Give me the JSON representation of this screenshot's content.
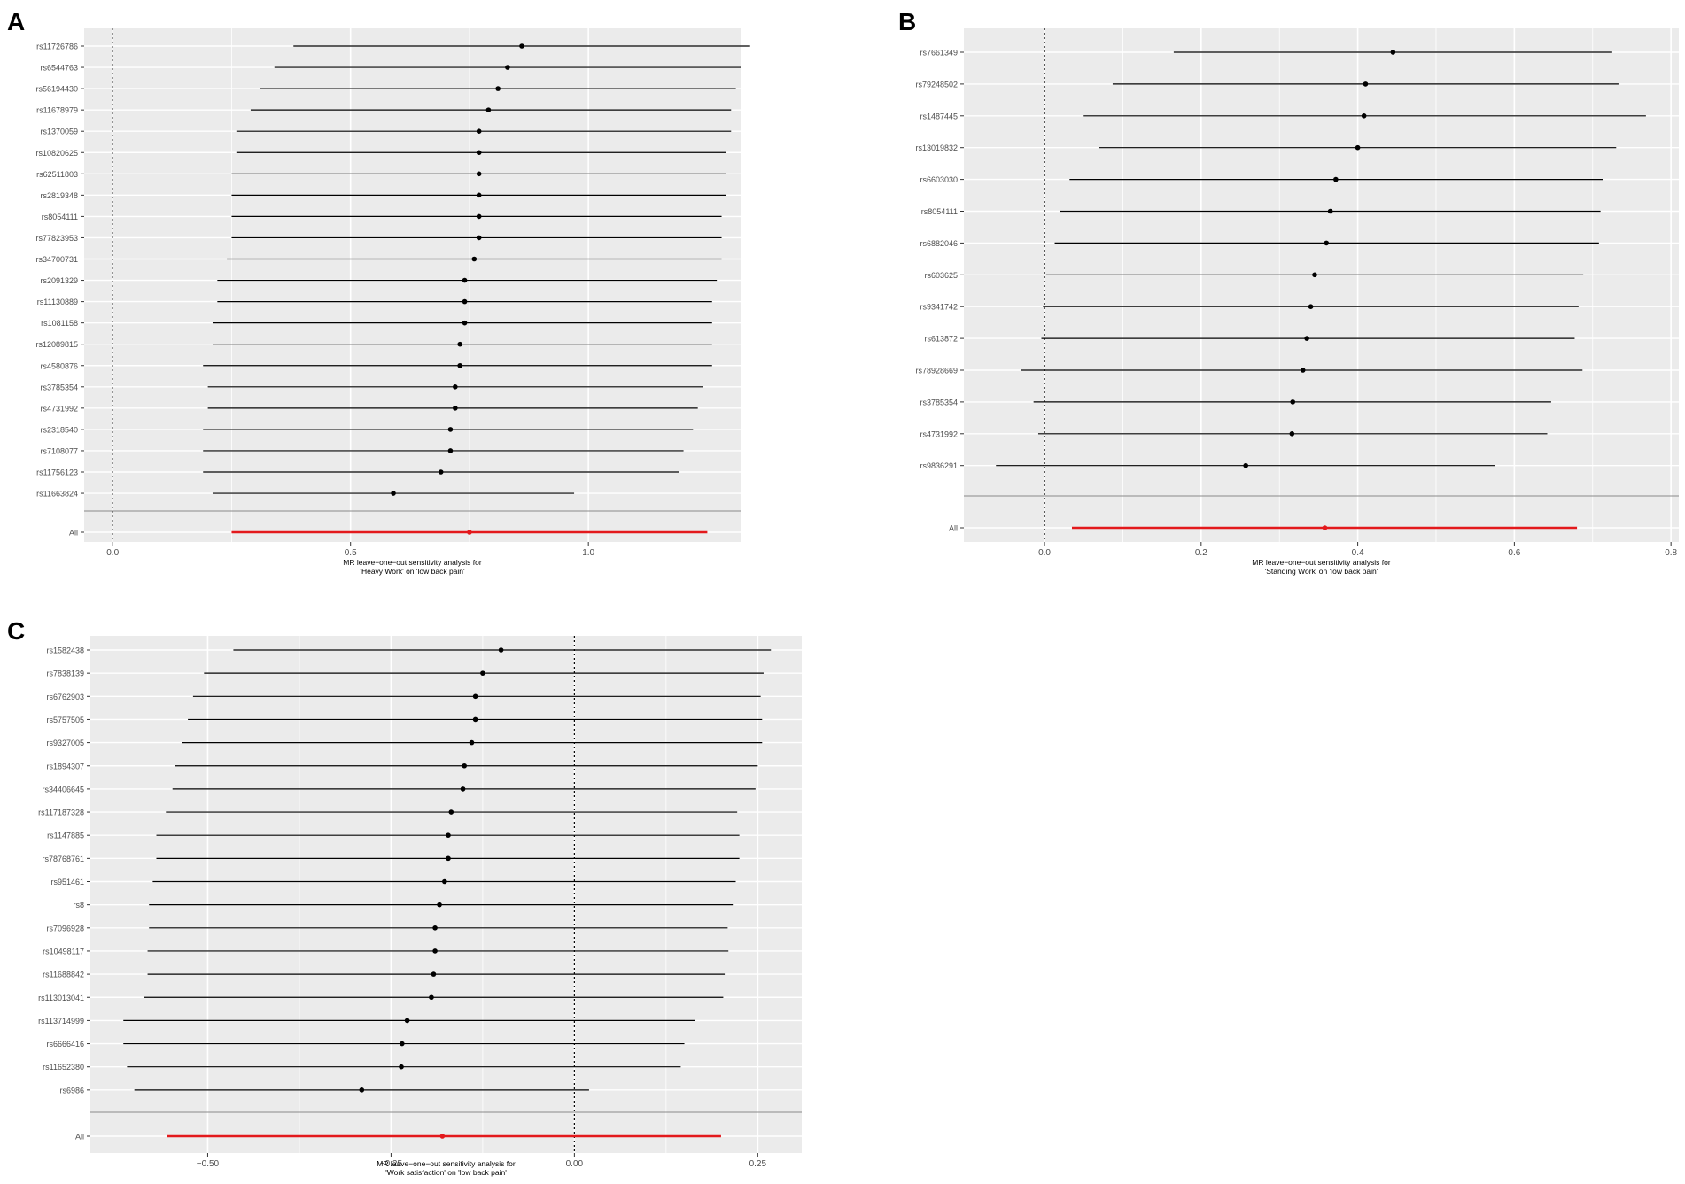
{
  "chart_data": [
    {
      "panel_letter": "A",
      "type": "scatter",
      "xlabel_lines": [
        "MR leave−one−out sensitivity analysis for",
        "'Heavy Work' on 'low back pain'"
      ],
      "xlim": [
        -0.06,
        1.32
      ],
      "xticks": [
        0.0,
        0.5,
        1.0
      ],
      "xtick_labels": [
        "0.0",
        "0.5",
        "1.0"
      ],
      "snps": [
        "rs11726786",
        "rs6544763",
        "rs56194430",
        "rs11678979",
        "rs1370059",
        "rs10820625",
        "rs62511803",
        "rs2819348",
        "rs8054111",
        "rs77823953",
        "rs34700731",
        "rs2091329",
        "rs11130889",
        "rs1081158",
        "rs12089815",
        "rs4580876",
        "rs3785354",
        "rs4731992",
        "rs2318540",
        "rs7108077",
        "rs11756123",
        "rs11663824"
      ],
      "estimates": [
        0.86,
        0.83,
        0.81,
        0.79,
        0.77,
        0.77,
        0.77,
        0.77,
        0.77,
        0.77,
        0.76,
        0.74,
        0.74,
        0.74,
        0.73,
        0.73,
        0.72,
        0.72,
        0.71,
        0.71,
        0.69,
        0.59
      ],
      "lower": [
        0.38,
        0.34,
        0.31,
        0.29,
        0.26,
        0.26,
        0.25,
        0.25,
        0.25,
        0.25,
        0.24,
        0.22,
        0.22,
        0.21,
        0.21,
        0.19,
        0.2,
        0.2,
        0.19,
        0.19,
        0.19,
        0.21
      ],
      "upper": [
        1.34,
        1.32,
        1.31,
        1.3,
        1.3,
        1.29,
        1.29,
        1.29,
        1.28,
        1.28,
        1.28,
        1.27,
        1.26,
        1.26,
        1.26,
        1.26,
        1.24,
        1.23,
        1.22,
        1.2,
        1.19,
        0.97
      ],
      "all": {
        "label": "All",
        "estimate": 0.75,
        "lower": 0.25,
        "upper": 1.25
      },
      "ref_line": 0.0,
      "colors": {
        "point": "#000000",
        "all": "#e3191c",
        "panel_bg": "#ebebeb",
        "grid": "#ffffff"
      }
    },
    {
      "panel_letter": "B",
      "type": "scatter",
      "xlabel_lines": [
        "MR leave−one−out sensitivity analysis for",
        "'Standing Work' on 'low back pain'"
      ],
      "xlim": [
        -0.103,
        0.81
      ],
      "xticks": [
        0.0,
        0.2,
        0.4,
        0.6,
        0.8
      ],
      "xtick_labels": [
        "0.0",
        "0.2",
        "0.4",
        "0.6",
        "0.8"
      ],
      "snps": [
        "rs7661349",
        "rs79248502",
        "rs1487445",
        "rs13019832",
        "rs6603030",
        "rs8054111",
        "rs6882046",
        "rs603625",
        "rs9341742",
        "rs613872",
        "rs78928669",
        "rs3785354",
        "rs4731992",
        "rs9836291"
      ],
      "estimates": [
        0.445,
        0.41,
        0.408,
        0.4,
        0.372,
        0.365,
        0.36,
        0.345,
        0.34,
        0.335,
        0.33,
        0.317,
        0.316,
        0.257
      ],
      "lower": [
        0.165,
        0.087,
        0.05,
        0.07,
        0.032,
        0.02,
        0.013,
        0.002,
        -0.002,
        -0.004,
        -0.03,
        -0.014,
        -0.008,
        -0.062
      ],
      "upper": [
        0.725,
        0.733,
        0.768,
        0.73,
        0.713,
        0.71,
        0.708,
        0.688,
        0.682,
        0.677,
        0.687,
        0.647,
        0.642,
        0.575
      ],
      "all": {
        "label": "All",
        "estimate": 0.358,
        "lower": 0.035,
        "upper": 0.68
      },
      "ref_line": 0.0,
      "colors": {
        "point": "#000000",
        "all": "#e3191c",
        "panel_bg": "#ebebeb",
        "grid": "#ffffff"
      }
    },
    {
      "panel_letter": "C",
      "type": "scatter",
      "xlabel_lines": [
        "MR leave−one−out sensitivity analysis for",
        "'Work satisfaction' on 'low back pain'"
      ],
      "xlim": [
        -0.66,
        0.31
      ],
      "xticks": [
        -0.5,
        -0.25,
        0.0,
        0.25
      ],
      "xtick_labels": [
        "−0.50",
        "−0.25",
        "0.00",
        "0.25"
      ],
      "snps": [
        "rs1582438",
        "rs7838139",
        "rs6762903",
        "rs5757505",
        "rs9327005",
        "rs1894307",
        "rs34406645",
        "rs117187328",
        "rs1147885",
        "rs78768761",
        "rs951461",
        "rs8",
        "rs7096928",
        "rs10498117",
        "rs11688842",
        "rs113013041",
        "rs113714999",
        "rs6666416",
        "rs11652380",
        "rs6986"
      ],
      "estimates": [
        -0.1,
        -0.125,
        -0.135,
        -0.135,
        -0.14,
        -0.15,
        -0.152,
        -0.168,
        -0.172,
        -0.172,
        -0.177,
        -0.184,
        -0.19,
        -0.19,
        -0.192,
        -0.195,
        -0.228,
        -0.235,
        -0.236,
        -0.29
      ],
      "lower": [
        -0.465,
        -0.505,
        -0.52,
        -0.527,
        -0.535,
        -0.545,
        -0.548,
        -0.557,
        -0.57,
        -0.57,
        -0.575,
        -0.58,
        -0.58,
        -0.582,
        -0.582,
        -0.587,
        -0.615,
        -0.615,
        -0.61,
        -0.6
      ],
      "upper": [
        0.268,
        0.258,
        0.254,
        0.256,
        0.256,
        0.25,
        0.247,
        0.222,
        0.225,
        0.225,
        0.22,
        0.216,
        0.209,
        0.21,
        0.205,
        0.203,
        0.165,
        0.15,
        0.145,
        0.02
      ],
      "all": {
        "label": "All",
        "estimate": -0.18,
        "lower": -0.555,
        "upper": 0.2
      },
      "ref_line": 0.0,
      "colors": {
        "point": "#000000",
        "all": "#e3191c",
        "panel_bg": "#ebebeb",
        "grid": "#ffffff"
      }
    }
  ]
}
